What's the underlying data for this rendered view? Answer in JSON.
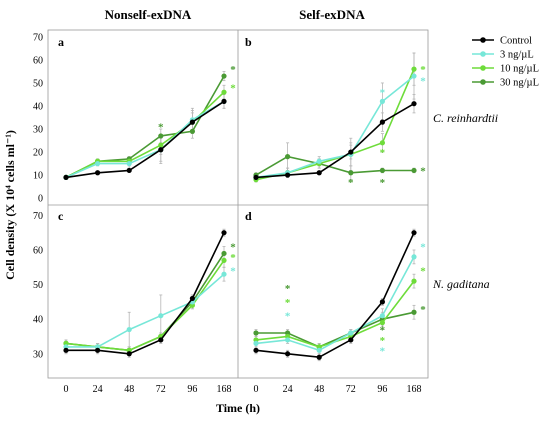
{
  "figure": {
    "col_titles": [
      "Nonself-exDNA",
      "Self-exDNA"
    ],
    "row_labels": [
      "C. reinhardtii",
      "N. gaditana"
    ],
    "ylabel": "Cell density (X 10⁴ cells  ml⁻¹)",
    "xlabel": "Time (h)",
    "legend": [
      {
        "label": "Control",
        "color": "#000000"
      },
      {
        "label": "3 ng/µL",
        "color": "#77e7d8"
      },
      {
        "label": "10 ng/µL",
        "color": "#6edc3a"
      },
      {
        "label": "30 ng/µL",
        "color": "#4a9a34"
      }
    ],
    "asterisk": "*"
  },
  "chart_data": [
    {
      "type": "line",
      "panel": "a",
      "x": [
        "0",
        "24",
        "48",
        "72",
        "96",
        "168"
      ],
      "ylim": [
        -3,
        73
      ],
      "yticks": [
        0,
        10,
        20,
        30,
        40,
        50,
        60,
        70
      ],
      "series": [
        {
          "name": "Control",
          "values": [
            9,
            11,
            12,
            21,
            33,
            42
          ]
        },
        {
          "name": "3 ng/µL",
          "values": [
            9,
            15,
            15,
            21,
            34,
            42
          ]
        },
        {
          "name": "10 ng/µL",
          "values": [
            9,
            16,
            16,
            23,
            33,
            46
          ]
        },
        {
          "name": "30 ng/µL",
          "values": [
            9,
            16,
            17,
            27,
            29,
            53
          ]
        }
      ],
      "errors": [
        [
          0,
          0,
          0,
          6,
          5,
          3
        ],
        [
          0,
          1,
          2,
          5,
          5,
          3
        ],
        [
          0,
          1,
          2,
          4,
          4,
          3
        ],
        [
          0,
          1,
          1,
          3,
          3,
          2
        ]
      ],
      "asterisks": [
        {
          "x": "72",
          "y": 31,
          "color": "#4a9a34"
        },
        {
          "x": "168",
          "y": 56,
          "color": "#4a9a34"
        },
        {
          "x": "168",
          "y": 48,
          "color": "#6edc3a"
        }
      ]
    },
    {
      "type": "line",
      "panel": "b",
      "x": [
        "0",
        "24",
        "48",
        "72",
        "96",
        "168"
      ],
      "ylim": [
        -3,
        73
      ],
      "yticks": [
        0,
        10,
        20,
        30,
        40,
        50,
        60,
        70
      ],
      "series": [
        {
          "name": "Control",
          "values": [
            9,
            10,
            11,
            20,
            33,
            41
          ]
        },
        {
          "name": "3 ng/µL",
          "values": [
            9,
            11,
            16,
            19,
            42,
            53
          ]
        },
        {
          "name": "10 ng/µL",
          "values": [
            8,
            11,
            15,
            19,
            24,
            56
          ]
        },
        {
          "name": "30 ng/µL",
          "values": [
            10,
            18,
            15,
            11,
            12,
            12
          ]
        }
      ],
      "errors": [
        [
          0,
          0,
          0,
          3,
          4,
          4
        ],
        [
          1,
          2,
          2,
          7,
          8,
          10
        ],
        [
          1,
          2,
          2,
          5,
          4,
          7
        ],
        [
          1,
          6,
          2,
          3,
          1,
          1
        ]
      ],
      "asterisks": [
        {
          "x": "96",
          "y": 46,
          "color": "#77e7d8"
        },
        {
          "x": "96",
          "y": 20,
          "color": "#6edc3a"
        },
        {
          "x": "96",
          "y": 7,
          "color": "#4a9a34"
        },
        {
          "x": "72",
          "y": 7,
          "color": "#4a9a34"
        },
        {
          "x": "168",
          "y": 56,
          "color": "#6edc3a"
        },
        {
          "x": "168",
          "y": 51,
          "color": "#77e7d8"
        },
        {
          "x": "168",
          "y": 12,
          "color": "#4a9a34"
        }
      ]
    },
    {
      "type": "line",
      "panel": "c",
      "x": [
        "0",
        "24",
        "48",
        "72",
        "96",
        "168"
      ],
      "ylim": [
        23,
        73
      ],
      "yticks": [
        30,
        40,
        50,
        60,
        70
      ],
      "series": [
        {
          "name": "Control",
          "values": [
            31,
            31,
            30,
            34,
            46,
            65
          ]
        },
        {
          "name": "3 ng/µL",
          "values": [
            32,
            32,
            37,
            41,
            45,
            53
          ]
        },
        {
          "name": "10 ng/µL",
          "values": [
            33,
            32,
            31,
            35,
            44,
            57
          ]
        },
        {
          "name": "30 ng/µL",
          "values": [
            33,
            32,
            31,
            35,
            45,
            59
          ]
        }
      ],
      "errors": [
        [
          1,
          1,
          1,
          1,
          1,
          1
        ],
        [
          1,
          1,
          5,
          6,
          2,
          2
        ],
        [
          1,
          1,
          1,
          1,
          1,
          2
        ],
        [
          1,
          1,
          1,
          1,
          1,
          2
        ]
      ],
      "asterisks": [
        {
          "x": "168",
          "y": 61,
          "color": "#4a9a34"
        },
        {
          "x": "168",
          "y": 58,
          "color": "#6edc3a"
        },
        {
          "x": "168",
          "y": 54,
          "color": "#77e7d8"
        }
      ]
    },
    {
      "type": "line",
      "panel": "d",
      "x": [
        "0",
        "24",
        "48",
        "72",
        "96",
        "168"
      ],
      "ylim": [
        23,
        73
      ],
      "yticks": [
        30,
        40,
        50,
        60,
        70
      ],
      "series": [
        {
          "name": "Control",
          "values": [
            31,
            30,
            29,
            34,
            45,
            65
          ]
        },
        {
          "name": "3 ng/µL",
          "values": [
            33,
            34,
            31,
            36,
            41,
            58
          ]
        },
        {
          "name": "10 ng/µL",
          "values": [
            34,
            35,
            32,
            35,
            39,
            51
          ]
        },
        {
          "name": "30 ng/µL",
          "values": [
            36,
            36,
            32,
            36,
            40,
            42
          ]
        }
      ],
      "errors": [
        [
          1,
          1,
          1,
          1,
          1,
          1
        ],
        [
          1,
          1,
          1,
          1,
          2,
          2
        ],
        [
          1,
          1,
          1,
          1,
          2,
          2
        ],
        [
          1,
          1,
          1,
          1,
          2,
          2
        ]
      ],
      "asterisks": [
        {
          "x": "24",
          "y": 49,
          "color": "#4a9a34"
        },
        {
          "x": "24",
          "y": 45,
          "color": "#6edc3a"
        },
        {
          "x": "24",
          "y": 41,
          "color": "#77e7d8"
        },
        {
          "x": "96",
          "y": 37,
          "color": "#4a9a34"
        },
        {
          "x": "96",
          "y": 34,
          "color": "#6edc3a"
        },
        {
          "x": "96",
          "y": 31,
          "color": "#77e7d8"
        },
        {
          "x": "168",
          "y": 61,
          "color": "#77e7d8"
        },
        {
          "x": "168",
          "y": 54,
          "color": "#6edc3a"
        },
        {
          "x": "168",
          "y": 43,
          "color": "#4a9a34"
        }
      ]
    }
  ]
}
